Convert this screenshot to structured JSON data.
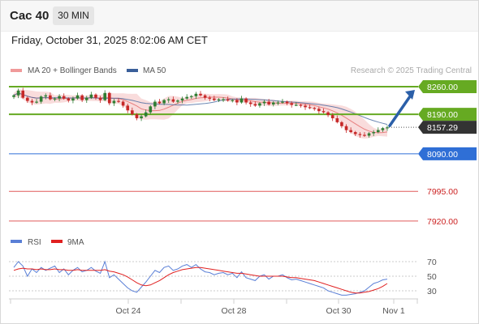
{
  "header": {
    "symbol": "Cac 40",
    "timeframe": "30 MIN",
    "timestamp": "Friday, October 31, 2025 8:02:06 AM CET"
  },
  "legend": {
    "ma20": "MA 20 + Bollinger Bands",
    "ma50": "MA 50",
    "watermark": "Research © 2025 Trading Central",
    "rsi": "RSI",
    "rsi_ma": "9MA"
  },
  "colors": {
    "up": "#2e7d32",
    "down": "#c62828",
    "support_resistance": "#66aa22",
    "target_arrow": "#2b5fa8",
    "pivot_line": "#2f6fd6",
    "lower_levels": "#e05a5a",
    "bollinger_fill": "#f8d6d6",
    "ma20": "#e88080",
    "ma50": "#3a5f9a",
    "rsi_line": "#5a7fd6",
    "rsi_ma": "#e02020",
    "current_price_bg": "#333333"
  },
  "chart_data": [
    {
      "type": "candlestick",
      "title": "Cac 40",
      "x_ticks": [
        "Oct 24",
        "Oct 28",
        "Oct 30",
        "Nov 1"
      ],
      "ylim": [
        7900,
        8280
      ],
      "series": [
        {
          "name": "MA 20 + Bollinger Bands"
        },
        {
          "name": "MA 50"
        }
      ],
      "levels": [
        {
          "label": "8260.00",
          "value": 8260,
          "role": "resistance"
        },
        {
          "label": "8190.00",
          "value": 8190,
          "role": "support"
        },
        {
          "label": "8157.29",
          "value": 8157.29,
          "role": "current price"
        },
        {
          "label": "8090.00",
          "value": 8090,
          "role": "pivot"
        },
        {
          "label": "7995.00",
          "value": 7995,
          "role": "support"
        },
        {
          "label": "7920.00",
          "value": 7920,
          "role": "support"
        }
      ],
      "price_path": [
        8238,
        8250,
        8232,
        8224,
        8220,
        8222,
        8235,
        8238,
        8228,
        8230,
        8236,
        8230,
        8225,
        8230,
        8238,
        8226,
        8232,
        8240,
        8232,
        8226,
        8244,
        8218,
        8224,
        8222,
        8212,
        8200,
        8190,
        8180,
        8185,
        8195,
        8210,
        8222,
        8218,
        8226,
        8228,
        8222,
        8225,
        8230,
        8234,
        8236,
        8242,
        8238,
        8232,
        8230,
        8226,
        8228,
        8228,
        8225,
        8226,
        8220,
        8230,
        8220,
        8216,
        8212,
        8218,
        8222,
        8215,
        8220,
        8220,
        8222,
        8218,
        8214,
        8214,
        8212,
        8208,
        8206,
        8204,
        8198,
        8195,
        8188,
        8180,
        8170,
        8160,
        8150,
        8145,
        8140,
        8138,
        8136,
        8142,
        8145,
        8150,
        8155,
        8157
      ]
    },
    {
      "type": "line",
      "title": "RSI",
      "yticks": [
        70,
        50,
        30
      ],
      "ylim": [
        20,
        80
      ],
      "series": [
        {
          "name": "RSI",
          "values": [
            62,
            70,
            64,
            50,
            60,
            55,
            62,
            58,
            61,
            64,
            55,
            60,
            52,
            58,
            62,
            56,
            58,
            62,
            57,
            54,
            70,
            48,
            52,
            46,
            40,
            34,
            30,
            28,
            35,
            42,
            50,
            58,
            55,
            62,
            64,
            58,
            60,
            64,
            66,
            62,
            66,
            60,
            56,
            55,
            52,
            54,
            55,
            52,
            54,
            48,
            56,
            48,
            46,
            44,
            50,
            52,
            46,
            50,
            50,
            52,
            48,
            45,
            46,
            44,
            42,
            40,
            38,
            36,
            34,
            30,
            28,
            26,
            24,
            24,
            25,
            26,
            28,
            30,
            35,
            40,
            42,
            45,
            46
          ]
        },
        {
          "name": "9MA",
          "values": [
            58,
            60,
            61,
            60,
            60,
            59,
            60,
            59,
            59,
            60,
            59,
            59,
            58,
            58,
            59,
            58,
            58,
            58,
            58,
            58,
            59,
            57,
            56,
            54,
            52,
            49,
            45,
            41,
            38,
            37,
            38,
            41,
            44,
            48,
            52,
            55,
            57,
            59,
            60,
            61,
            62,
            62,
            61,
            60,
            59,
            58,
            57,
            56,
            55,
            54,
            54,
            53,
            52,
            51,
            50,
            50,
            50,
            50,
            50,
            50,
            49,
            48,
            48,
            47,
            46,
            45,
            44,
            42,
            40,
            38,
            36,
            34,
            32,
            30,
            28,
            27,
            27,
            28,
            29,
            31,
            33,
            36,
            40
          ]
        }
      ]
    }
  ]
}
